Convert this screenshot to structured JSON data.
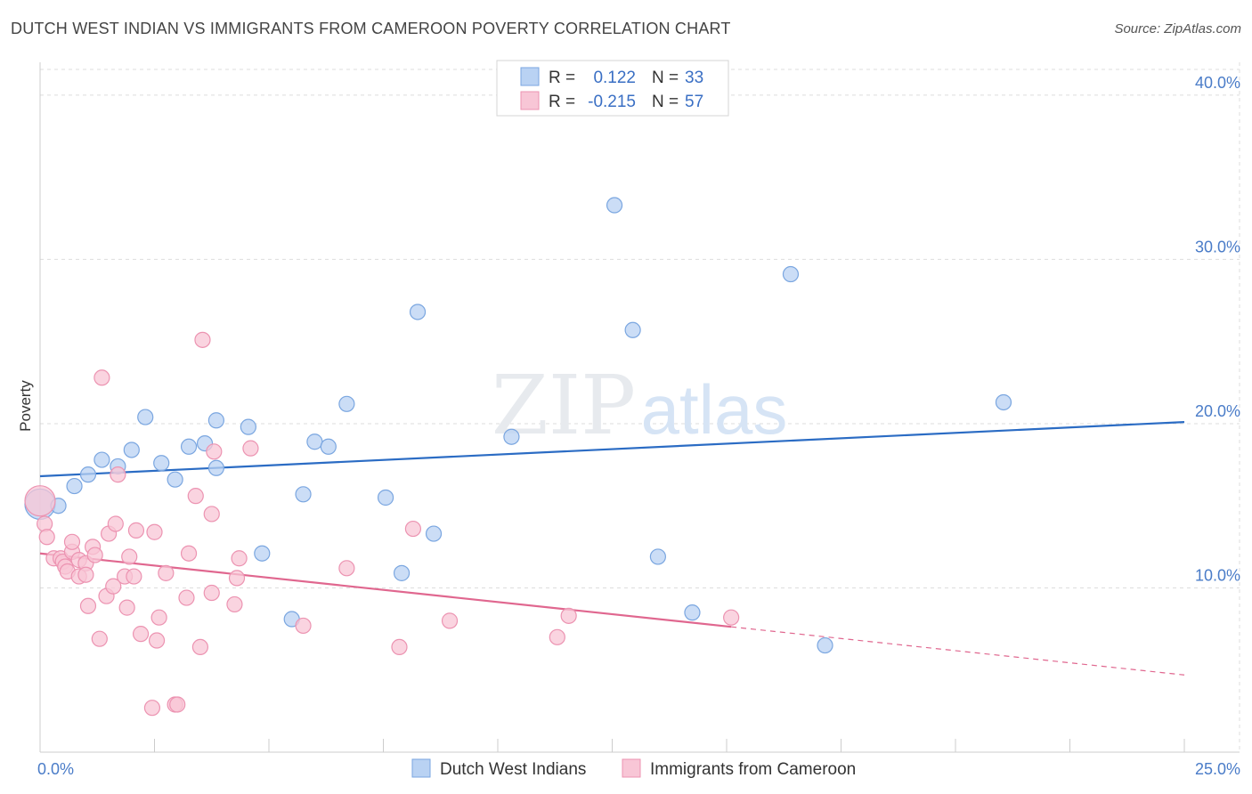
{
  "header": {
    "title": "DUTCH WEST INDIAN VS IMMIGRANTS FROM CAMEROON POVERTY CORRELATION CHART",
    "source": "Source: ZipAtlas.com"
  },
  "watermark": {
    "zip": "ZIP",
    "atlas": "atlas"
  },
  "colors": {
    "blue_fill": "#b9d2f3",
    "blue_stroke": "#7aa6e0",
    "blue_line": "#2b6cc4",
    "pink_fill": "#f8c6d6",
    "pink_stroke": "#ec93b1",
    "pink_line": "#e0678f",
    "grid": "#dddddd",
    "tick_label": "#4a7cc8"
  },
  "legend": {
    "r_label": "R =",
    "n_label": "N =",
    "rows": [
      {
        "r": "0.122",
        "n": "33"
      },
      {
        "r": "-0.215",
        "n": "57"
      }
    ]
  },
  "chart_data": {
    "type": "scatter",
    "title": "DUTCH WEST INDIAN VS IMMIGRANTS FROM CAMEROON POVERTY CORRELATION CHART",
    "xlabel": "",
    "ylabel": "Poverty",
    "xlim": [
      0,
      25
    ],
    "ylim": [
      0,
      42
    ],
    "x_tick_labels": [
      "0.0%",
      "25.0%"
    ],
    "y_ticks": [
      10,
      20,
      30,
      40
    ],
    "y_tick_labels": [
      "10.0%",
      "20.0%",
      "30.0%",
      "40.0%"
    ],
    "grid": true,
    "legend_position": "top-center",
    "series": [
      {
        "name": "Dutch West Indians",
        "color": "#b9d2f3",
        "points": [
          [
            0.0,
            15.1
          ],
          [
            0.4,
            15.0
          ],
          [
            0.75,
            16.2
          ],
          [
            1.05,
            16.9
          ],
          [
            1.35,
            17.8
          ],
          [
            1.7,
            17.4
          ],
          [
            2.0,
            18.4
          ],
          [
            2.3,
            20.4
          ],
          [
            2.65,
            17.6
          ],
          [
            2.95,
            16.6
          ],
          [
            3.25,
            18.6
          ],
          [
            3.6,
            18.8
          ],
          [
            3.85,
            17.3
          ],
          [
            3.85,
            20.2
          ],
          [
            4.55,
            19.8
          ],
          [
            4.85,
            12.1
          ],
          [
            5.5,
            8.1
          ],
          [
            5.75,
            15.7
          ],
          [
            6.0,
            18.9
          ],
          [
            6.3,
            18.6
          ],
          [
            6.7,
            21.2
          ],
          [
            7.55,
            15.5
          ],
          [
            7.9,
            10.9
          ],
          [
            8.25,
            26.8
          ],
          [
            8.6,
            13.3
          ],
          [
            10.3,
            19.2
          ],
          [
            12.55,
            33.3
          ],
          [
            12.95,
            25.7
          ],
          [
            13.5,
            11.9
          ],
          [
            14.25,
            8.5
          ],
          [
            16.4,
            29.1
          ],
          [
            17.15,
            6.5
          ],
          [
            21.05,
            21.3
          ]
        ]
      },
      {
        "name": "Immigrants from Cameroon",
        "color": "#f8c6d6",
        "points": [
          [
            0.0,
            15.3
          ],
          [
            0.1,
            13.9
          ],
          [
            0.15,
            13.1
          ],
          [
            0.3,
            11.8
          ],
          [
            0.45,
            11.8
          ],
          [
            0.5,
            11.6
          ],
          [
            0.55,
            11.3
          ],
          [
            0.6,
            11.0
          ],
          [
            0.7,
            12.2
          ],
          [
            0.7,
            12.8
          ],
          [
            0.85,
            11.7
          ],
          [
            0.85,
            10.7
          ],
          [
            1.0,
            11.5
          ],
          [
            1.0,
            10.8
          ],
          [
            1.05,
            8.9
          ],
          [
            1.15,
            12.5
          ],
          [
            1.2,
            12.0
          ],
          [
            1.3,
            6.9
          ],
          [
            1.35,
            22.8
          ],
          [
            1.45,
            9.5
          ],
          [
            1.5,
            13.3
          ],
          [
            1.6,
            10.1
          ],
          [
            1.65,
            13.9
          ],
          [
            1.7,
            16.9
          ],
          [
            1.85,
            10.7
          ],
          [
            1.9,
            8.8
          ],
          [
            1.95,
            11.9
          ],
          [
            2.05,
            10.7
          ],
          [
            2.1,
            13.5
          ],
          [
            2.2,
            7.2
          ],
          [
            2.45,
            2.7
          ],
          [
            2.5,
            13.4
          ],
          [
            2.55,
            6.8
          ],
          [
            2.6,
            8.2
          ],
          [
            2.75,
            10.9
          ],
          [
            2.95,
            2.9
          ],
          [
            3.0,
            2.9
          ],
          [
            3.2,
            9.4
          ],
          [
            3.25,
            12.1
          ],
          [
            3.4,
            15.6
          ],
          [
            3.5,
            6.4
          ],
          [
            3.55,
            25.1
          ],
          [
            3.75,
            9.7
          ],
          [
            3.75,
            14.5
          ],
          [
            3.8,
            18.3
          ],
          [
            4.25,
            9.0
          ],
          [
            4.3,
            10.6
          ],
          [
            4.35,
            11.8
          ],
          [
            4.6,
            18.5
          ],
          [
            5.75,
            7.7
          ],
          [
            6.7,
            11.2
          ],
          [
            7.85,
            6.4
          ],
          [
            8.15,
            13.6
          ],
          [
            8.95,
            8.0
          ],
          [
            11.3,
            7.0
          ],
          [
            11.55,
            8.3
          ],
          [
            15.1,
            8.2
          ]
        ]
      }
    ],
    "trendlines": [
      {
        "series": "Dutch West Indians",
        "x": [
          0,
          25
        ],
        "y": [
          16.8,
          20.1
        ],
        "dashed_from": null
      },
      {
        "series": "Immigrants from Cameroon",
        "x": [
          0,
          25
        ],
        "y": [
          12.1,
          4.7
        ],
        "dashed_from": 15.1
      }
    ]
  }
}
